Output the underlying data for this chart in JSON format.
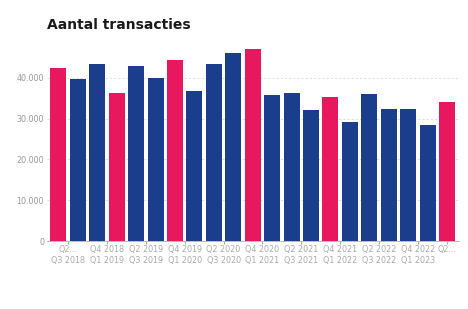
{
  "title": "Aantal transacties",
  "categories_line1": [
    "Q2...",
    "Q4 2018",
    "Q2 2019",
    "Q4 2019",
    "Q2 2020",
    "Q4 2020",
    "Q2 2021",
    "Q4 2021",
    "Q2 2022",
    "Q4 2022",
    "Q2..."
  ],
  "categories_line2": [
    "Q3 2018",
    "Q1 2019",
    "Q3 2019",
    "Q1 2020",
    "Q3 2020",
    "Q1 2021",
    "Q3 2021",
    "Q1 2022",
    "Q3 2022",
    "Q1 2023",
    ""
  ],
  "values": [
    42500,
    39800,
    43300,
    36200,
    43000,
    40000,
    44500,
    36700,
    43300,
    46000,
    47000,
    35800,
    36300,
    32200,
    35200,
    29200,
    36000,
    32400,
    32400,
    28500,
    34000
  ],
  "colors": [
    "#e8185e",
    "#1a3e8c",
    "#1a3e8c",
    "#e8185e",
    "#1a3e8c",
    "#1a3e8c",
    "#e8185e",
    "#1a3e8c",
    "#1a3e8c",
    "#1a3e8c",
    "#e8185e",
    "#1a3e8c",
    "#1a3e8c",
    "#1a3e8c",
    "#e8185e",
    "#1a3e8c",
    "#1a3e8c",
    "#1a3e8c",
    "#1a3e8c",
    "#1a3e8c",
    "#e8185e"
  ],
  "ylim": [
    0,
    50000
  ],
  "yticks": [
    0,
    10000,
    20000,
    30000,
    40000
  ],
  "background_color": "#ffffff",
  "grid_color": "#d0d0d0",
  "title_fontsize": 10,
  "tick_fontsize": 5.8
}
